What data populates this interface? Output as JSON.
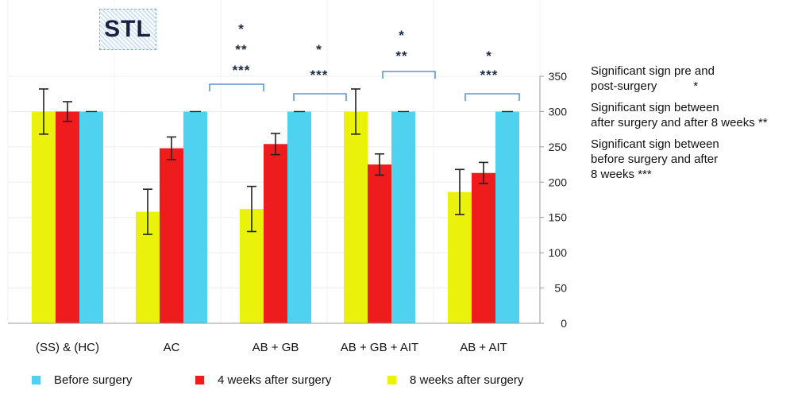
{
  "chart_data": {
    "type": "bar",
    "title": "STL",
    "categories": [
      "(SS) & (HC)",
      "AC",
      "AB + GB",
      "AB + GB + AIT",
      "AB + AIT"
    ],
    "ylim": [
      0,
      350
    ],
    "yticks": [
      0,
      50,
      100,
      150,
      200,
      250,
      300,
      350
    ],
    "y_axis_side": "right",
    "grid": true,
    "series": [
      {
        "name": "8 weeks after surgery",
        "color": "#eaf20b",
        "values": [
          300,
          158,
          162,
          300,
          186
        ],
        "errors": [
          32,
          32,
          32,
          32,
          32
        ]
      },
      {
        "name": "4 weeks after surgery",
        "color": "#ee1c1c",
        "values": [
          300,
          248,
          254,
          225,
          213
        ],
        "errors": [
          14,
          16,
          15,
          15,
          15
        ]
      },
      {
        "name": "Before surgery",
        "color": "#4fd2f0",
        "values": [
          300,
          300,
          300,
          300,
          300
        ],
        "errors": [
          0,
          0,
          0,
          0,
          0
        ]
      }
    ],
    "legend_order": [
      2,
      1,
      0
    ],
    "legend_position": "bottom",
    "significance_brackets": [
      {
        "from_category": 1,
        "to_category": 2,
        "stars": [
          "*",
          "**",
          "***"
        ]
      },
      {
        "from_category": 2,
        "to_category": 2,
        "stars": [
          "*",
          "***"
        ]
      },
      {
        "from_category": 3,
        "to_category": 3,
        "stars": [
          "*",
          "**"
        ]
      },
      {
        "from_category": 4,
        "to_category": 4,
        "stars": [
          "*",
          "***"
        ]
      }
    ],
    "notes": [
      [
        "Significant sign pre and",
        "post-surgery           *"
      ],
      [
        "Significant sign between",
        "after surgery and after 8 weeks **"
      ],
      [
        "Significant sign between",
        "before surgery and after",
        "8 weeks  ***"
      ]
    ]
  }
}
